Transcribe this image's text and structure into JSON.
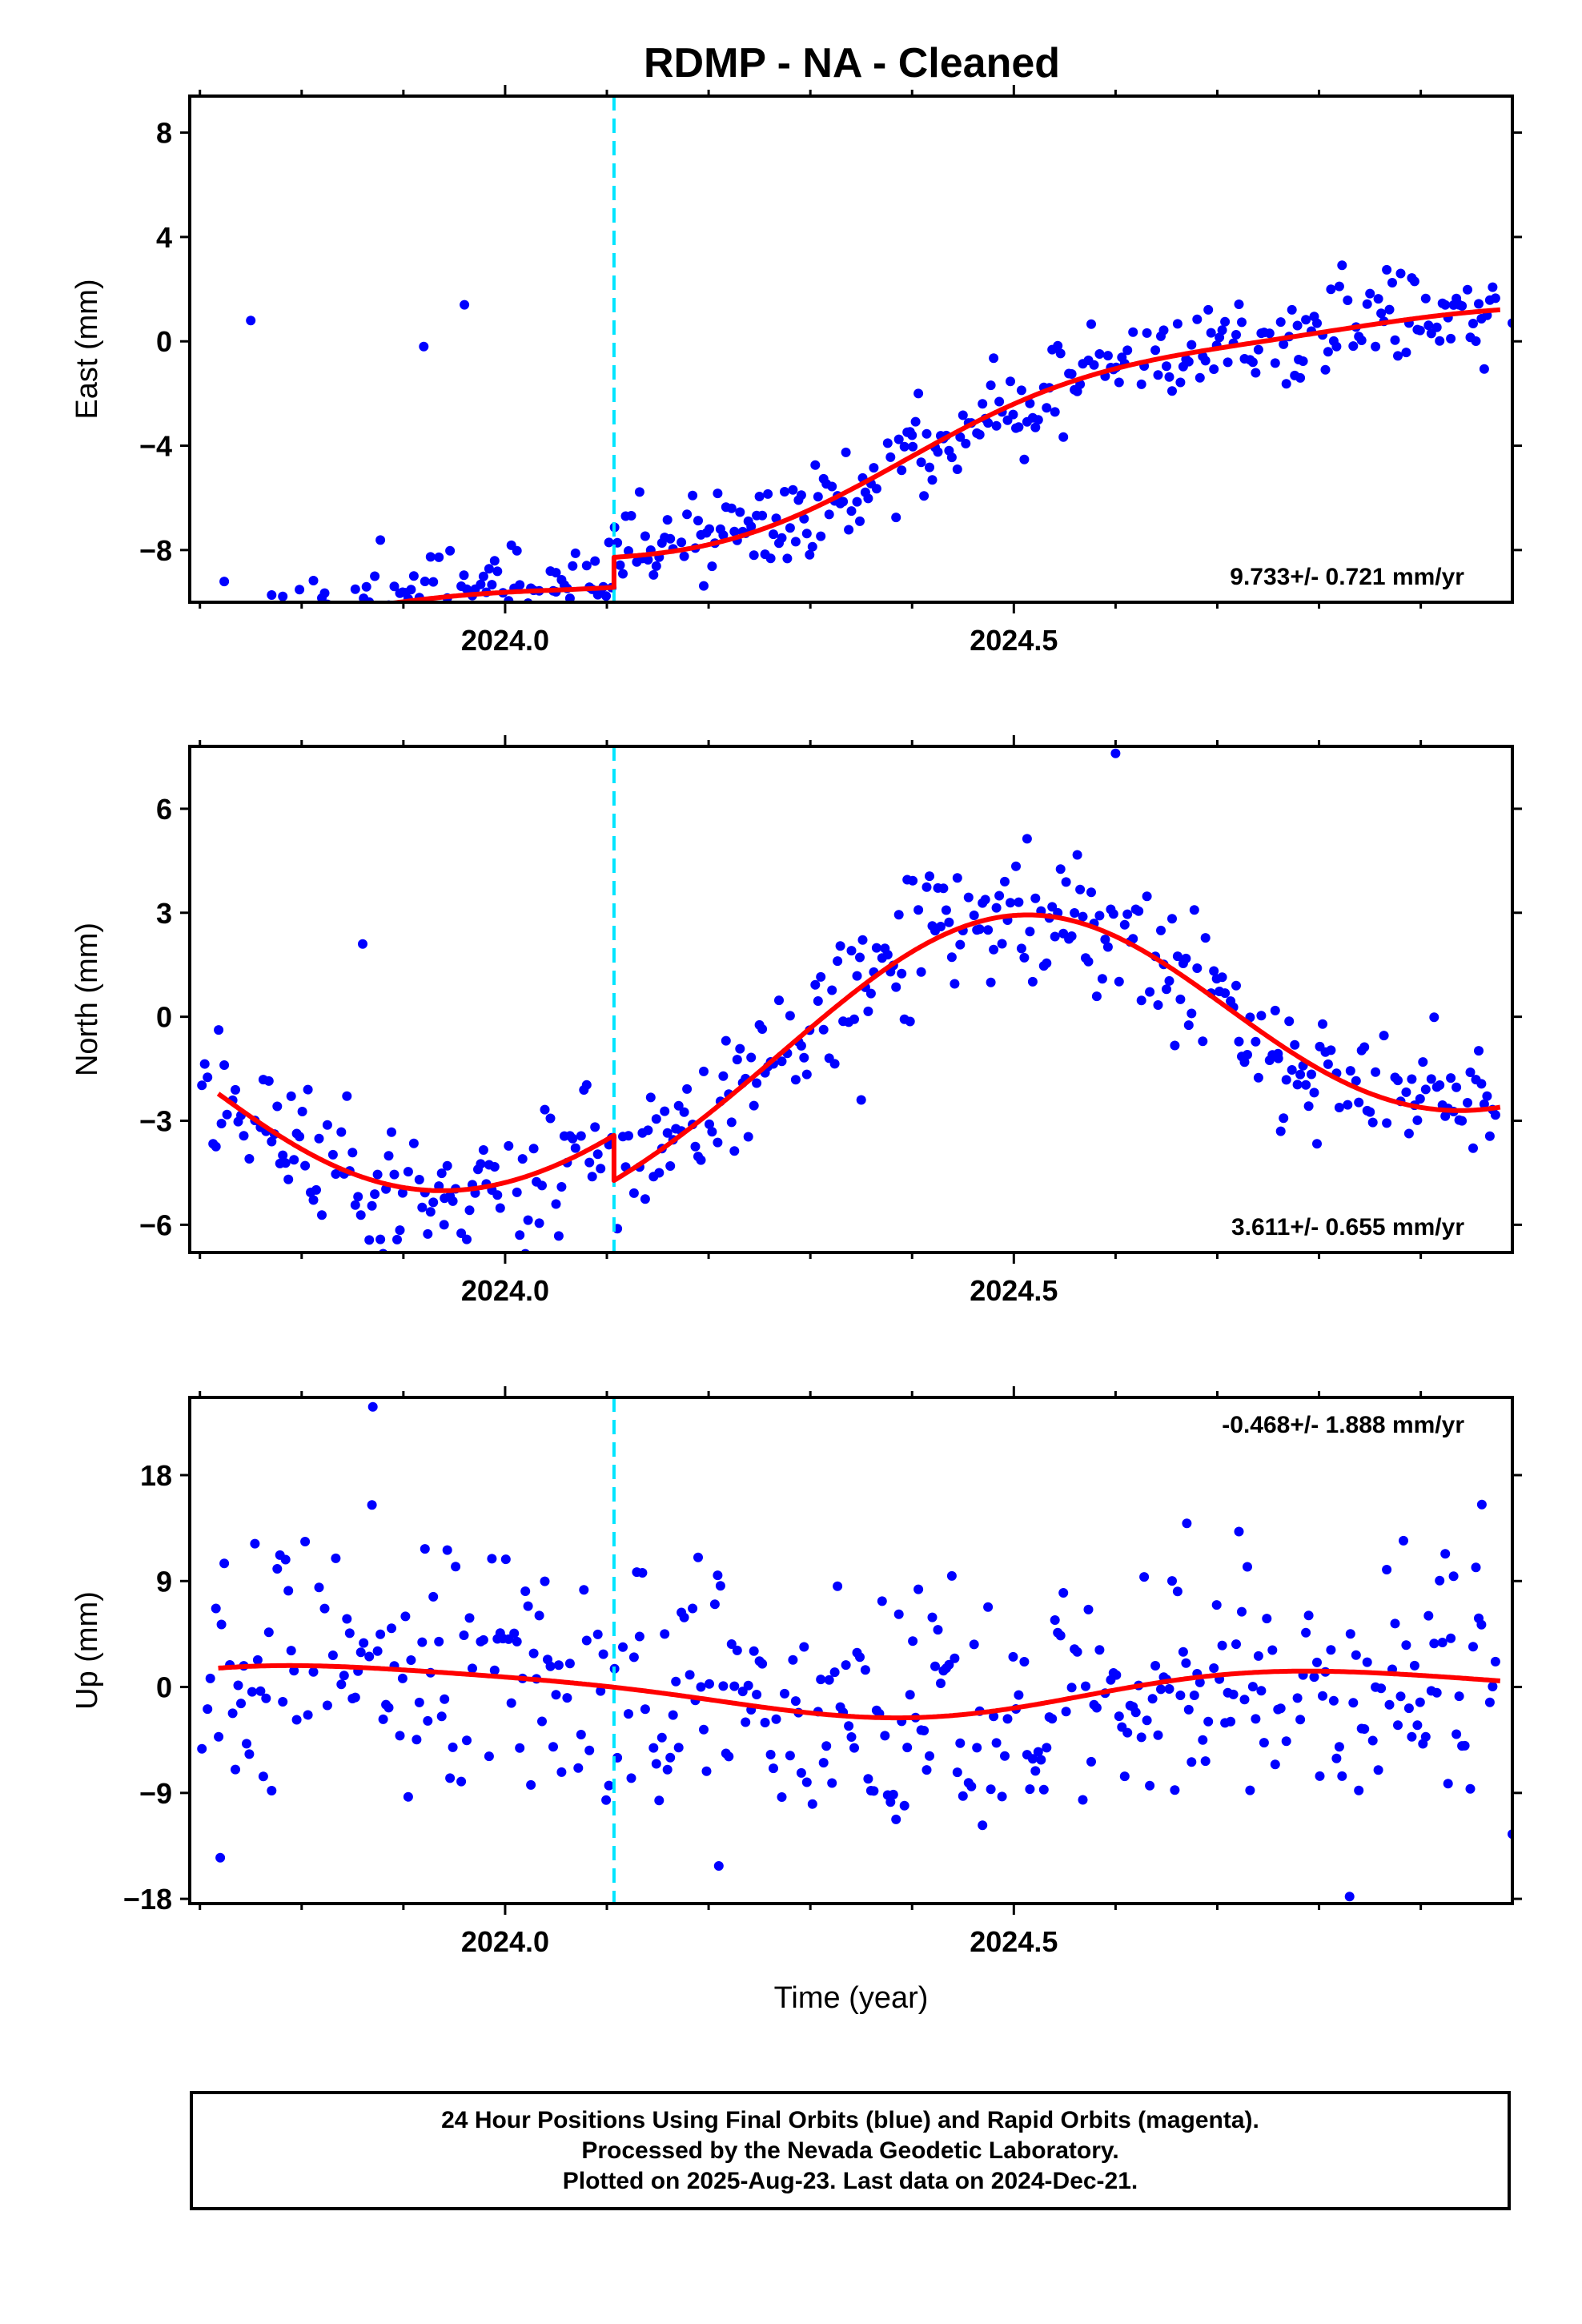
{
  "chart_data": [
    {
      "type": "scatter",
      "title": "RDMP  - NA - Cleaned",
      "ylabel": "East (mm)",
      "xlabel": "",
      "xlim": [
        2023.69,
        2024.99
      ],
      "ylim": [
        -10.0,
        9.4
      ],
      "xticks": [
        2024.0,
        2024.5
      ],
      "xtick_labels": [
        "2024.0",
        "2024.5"
      ],
      "yticks": [
        -8,
        -4,
        0,
        4,
        8
      ],
      "ytick_labels": [
        "−8",
        "−4",
        "0",
        "4",
        "8"
      ],
      "rate_label": "9.733+/- 0.721 mm/yr",
      "event_x": 2024.107,
      "fit_model": {
        "offset": -6.4,
        "rate": 9.733,
        "step": 1.15,
        "step_x": 2024.107,
        "annual_cos": -0.6,
        "annual_sin": -1.2,
        "semi_cos": 0.3,
        "semi_sin": 0.0,
        "x_ref": 2024.3
      },
      "scatter": {
        "seed": 11,
        "noise": 0.9,
        "outliers": [
          [
            2023.75,
            0.8
          ],
          [
            2023.92,
            -0.2
          ],
          [
            2023.96,
            1.4
          ],
          [
            2024.05,
            -9.6
          ],
          [
            2024.4,
            -3.6
          ],
          [
            2024.78,
            -0.7
          ],
          [
            2024.99,
            0.7
          ]
        ]
      },
      "grid": false
    },
    {
      "type": "scatter",
      "title": "",
      "ylabel": "North (mm)",
      "xlabel": "",
      "xlim": [
        2023.69,
        2024.99
      ],
      "ylim": [
        -6.8,
        7.8
      ],
      "xticks": [
        2024.0,
        2024.5
      ],
      "xtick_labels": [
        "2024.0",
        "2024.5"
      ],
      "yticks": [
        -6,
        -3,
        0,
        3,
        6
      ],
      "ytick_labels": [
        "−6",
        "−3",
        "0",
        "3",
        "6"
      ],
      "rate_label": "3.611+/- 0.655 mm/yr",
      "event_x": 2024.107,
      "fit_model": {
        "offset": -0.3,
        "rate": 3.611,
        "step": -1.3,
        "step_x": 2024.107,
        "annual_cos": -3.6,
        "annual_sin": 0.4,
        "semi_cos": 0.2,
        "semi_sin": 0.1,
        "x_ref": 2024.3
      },
      "scatter": {
        "seed": 23,
        "noise": 1.0,
        "outliers": [
          [
            2023.86,
            2.1
          ],
          [
            2023.94,
            -6.0
          ],
          [
            2024.35,
            -2.4
          ],
          [
            2024.6,
            7.6
          ],
          [
            2024.76,
            -1.2
          ]
        ]
      },
      "grid": false
    },
    {
      "type": "scatter",
      "title": "",
      "ylabel": "Up (mm)",
      "xlabel": "Time (year)",
      "xlim": [
        2023.69,
        2024.99
      ],
      "ylim": [
        -18.4,
        24.6
      ],
      "xticks": [
        2024.0,
        2024.5
      ],
      "xtick_labels": [
        "2024.0",
        "2024.5"
      ],
      "yticks": [
        -18,
        -9,
        0,
        9,
        18
      ],
      "ytick_labels": [
        "−18",
        "−9",
        "0",
        "9",
        "18"
      ],
      "rate_label": "-0.468+/- 1.888 mm/yr",
      "event_x": 2024.107,
      "fit_model": {
        "offset": -0.3,
        "rate": -0.468,
        "step": 0.0,
        "step_x": 2024.107,
        "annual_cos": 1.2,
        "annual_sin": -1.6,
        "semi_cos": -0.2,
        "semi_sin": 0.3,
        "x_ref": 2024.3
      },
      "scatter": {
        "seed": 37,
        "noise": 5.0,
        "outliers": [
          [
            2023.87,
            23.8
          ],
          [
            2023.72,
            -14.5
          ],
          [
            2024.21,
            -15.2
          ],
          [
            2024.67,
            13.9
          ],
          [
            2024.83,
            -17.8
          ],
          [
            2024.96,
            15.5
          ],
          [
            2024.99,
            -12.5
          ]
        ]
      },
      "grid": false
    }
  ],
  "caption": {
    "line1": "24 Hour Positions Using Final Orbits (blue) and Rapid Orbits (magenta).",
    "line2": "Processed by the Nevada Geodetic Laboratory.",
    "line3": "Plotted on 2025-Aug-23. Last data on 2024-Dec-21."
  },
  "colors": {
    "points": "#0000ff",
    "fit": "#ff0000",
    "event_line": "#00e5ff",
    "frame": "#000000"
  }
}
